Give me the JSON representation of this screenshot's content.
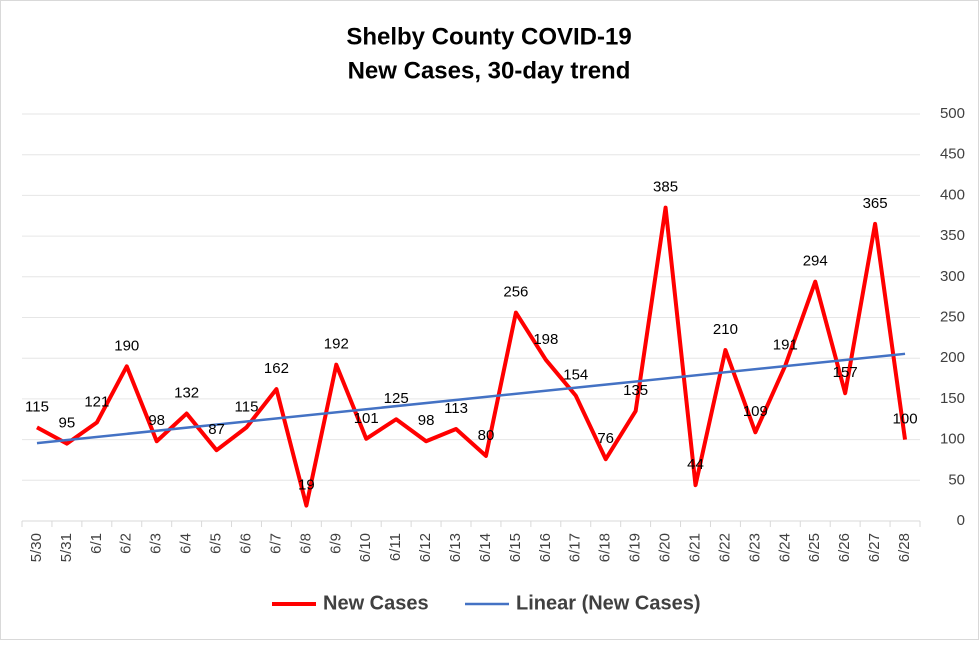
{
  "chart_data": {
    "type": "line",
    "title": "Shelby County COVID-19",
    "subtitle": "New Cases, 30-day trend",
    "categories": [
      "5/30",
      "5/31",
      "6/1",
      "6/2",
      "6/3",
      "6/4",
      "6/5",
      "6/6",
      "6/7",
      "6/8",
      "6/9",
      "6/10",
      "6/11",
      "6/12",
      "6/13",
      "6/14",
      "6/15",
      "6/16",
      "6/17",
      "6/18",
      "6/19",
      "6/20",
      "6/21",
      "6/22",
      "6/23",
      "6/24",
      "6/25",
      "6/26",
      "6/27",
      "6/28"
    ],
    "series": [
      {
        "name": "New Cases",
        "color": "#ff0000",
        "values": [
          115,
          95,
          121,
          190,
          98,
          132,
          87,
          115,
          162,
          19,
          192,
          101,
          125,
          98,
          113,
          80,
          256,
          198,
          154,
          76,
          135,
          385,
          44,
          210,
          109,
          191,
          294,
          157,
          365,
          100
        ]
      }
    ],
    "trendline": {
      "name": "Linear (New Cases)",
      "color": "#4472c4"
    },
    "ylim": [
      0,
      500
    ],
    "yticks": [
      0,
      50,
      100,
      150,
      200,
      250,
      300,
      350,
      400,
      450,
      500
    ],
    "grid": true,
    "legend": "bottom"
  }
}
